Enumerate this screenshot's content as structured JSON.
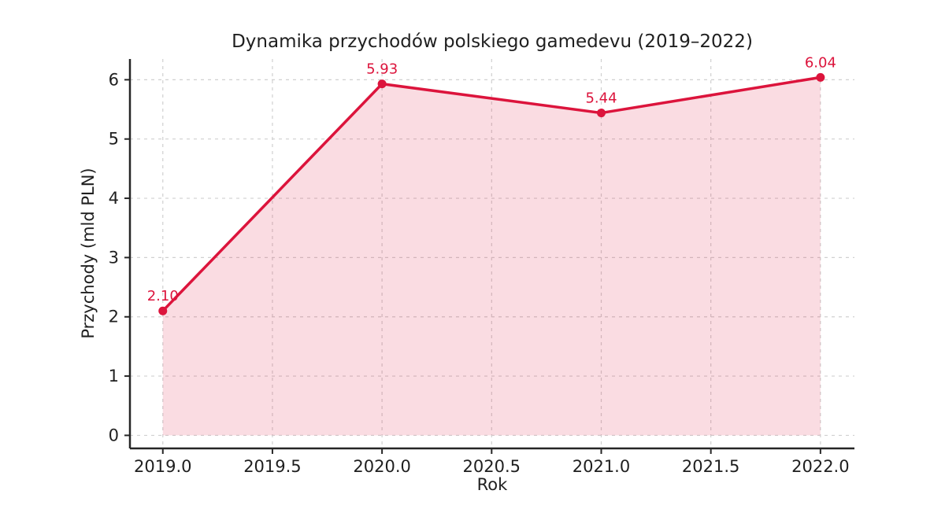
{
  "chart_data": {
    "type": "area",
    "title": "Dynamika przychodów polskiego gamedevu (2019–2022)",
    "xlabel": "Rok",
    "ylabel": "Przychody (mld PLN)",
    "x": [
      2019,
      2020,
      2021,
      2022
    ],
    "values": [
      2.1,
      5.93,
      5.44,
      6.04
    ],
    "point_labels": [
      "2.10",
      "5.93",
      "5.44",
      "6.04"
    ],
    "fill_baseline": 0,
    "xlim": [
      2018.85,
      2022.155
    ],
    "ylim": [
      -0.22,
      6.35
    ],
    "xticks": [
      {
        "v": 2019.0,
        "label": "2019.0"
      },
      {
        "v": 2019.5,
        "label": "2019.5"
      },
      {
        "v": 2020.0,
        "label": "2020.0"
      },
      {
        "v": 2020.5,
        "label": "2020.5"
      },
      {
        "v": 2021.0,
        "label": "2021.0"
      },
      {
        "v": 2021.5,
        "label": "2021.5"
      },
      {
        "v": 2022.0,
        "label": "2022.0"
      }
    ],
    "yticks": [
      {
        "v": 0,
        "label": "0"
      },
      {
        "v": 1,
        "label": "1"
      },
      {
        "v": 2,
        "label": "2"
      },
      {
        "v": 3,
        "label": "3"
      },
      {
        "v": 4,
        "label": "4"
      },
      {
        "v": 5,
        "label": "5"
      },
      {
        "v": 6,
        "label": "6"
      }
    ],
    "colors": {
      "line": "#DC143C",
      "marker": "#DC143C",
      "fill": "#DC143C",
      "fill_opacity": 0.15,
      "grid": "#d0d0d0",
      "spine": "#262626",
      "text": "#1f1f1f",
      "point_label": "#DC143C"
    },
    "grid": {
      "style": "dashed",
      "on": true
    },
    "legend": null
  }
}
